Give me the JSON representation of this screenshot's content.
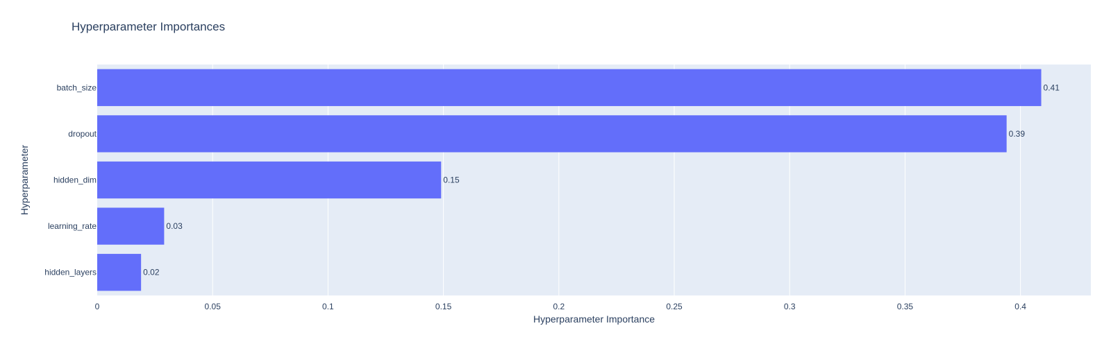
{
  "chart_data": {
    "type": "bar",
    "orientation": "horizontal",
    "title": "Hyperparameter Importances",
    "xlabel": "Hyperparameter Importance",
    "ylabel": "Hyperparameter",
    "categories": [
      "batch_size",
      "dropout",
      "hidden_dim",
      "learning_rate",
      "hidden_layers"
    ],
    "values": [
      0.409,
      0.394,
      0.149,
      0.029,
      0.019
    ],
    "data_labels": [
      "0.41",
      "0.39",
      "0.15",
      "0.03",
      "0.02"
    ],
    "x_ticks": [
      0,
      0.05,
      0.1,
      0.15,
      0.2,
      0.25,
      0.3,
      0.35,
      0.4
    ],
    "x_tick_labels": [
      "0",
      "0.05",
      "0.1",
      "0.15",
      "0.2",
      "0.25",
      "0.3",
      "0.35",
      "0.4"
    ],
    "xlim": [
      0,
      0.4305
    ],
    "grid": true,
    "legend": false,
    "colors": {
      "bar": "#636efa",
      "plot_background": "#e5ecf6",
      "grid": "#ffffff",
      "text": "#2a3f5f"
    }
  }
}
